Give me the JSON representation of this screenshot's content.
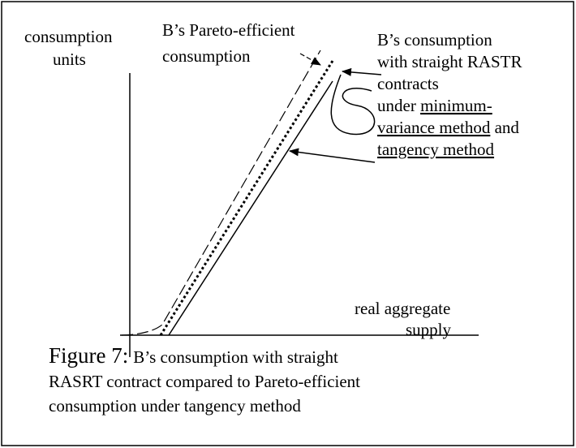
{
  "figure": {
    "y_axis_label": [
      "consumption",
      "units"
    ],
    "x_axis_label": [
      "real aggregate",
      "supply"
    ],
    "pareto_label": [
      "B’s Pareto-efficient",
      "consumption"
    ],
    "rastr_label": [
      [
        {
          "text": "B’s consumption"
        }
      ],
      [
        {
          "text": "with straight RASTR"
        }
      ],
      [
        {
          "text": "contracts"
        }
      ],
      [
        {
          "text": "under "
        },
        {
          "text": "minimum-",
          "underline": true
        }
      ],
      [
        {
          "text": "variance method",
          "underline": true
        },
        {
          "text": " and"
        }
      ],
      [
        {
          "text": "tangency method",
          "underline": true
        }
      ]
    ],
    "caption": {
      "prefix": "Figure 7:",
      "lines": [
        "B’s consumption with straight",
        "RASRT contract compared to Pareto-efficient",
        "consumption under tangency method"
      ]
    }
  }
}
